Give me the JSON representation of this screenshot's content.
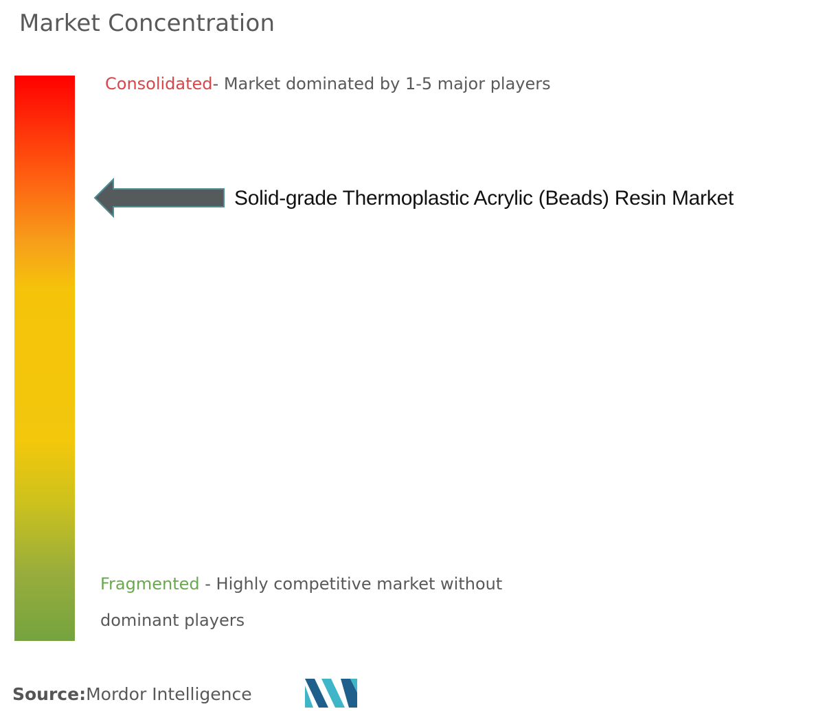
{
  "title": "Market Concentration",
  "chart_data": {
    "type": "gradient-scale",
    "title": "Market Concentration",
    "scale_top": {
      "label": "Consolidated",
      "description": "- Market dominated by 1-5 major players"
    },
    "scale_bottom": {
      "label": "Fragmented",
      "description": " - Highly competitive market without dominant players"
    },
    "marker": {
      "label": "Solid-grade Thermoplastic Acrylic (Beads) Resin Market",
      "position_fraction_from_top": 0.22
    },
    "gradient_colors": [
      "#ff0000",
      "#ff5a10",
      "#f7a11a",
      "#f5c40a",
      "#f2c70c",
      "#cfc21c",
      "#98ad3c",
      "#75a33f"
    ]
  },
  "source": {
    "label": "Source:",
    "value": "Mordor Intelligence"
  },
  "colors": {
    "consolidated": "#d9464a",
    "fragmented": "#6aa84f",
    "arrow": "#555a5c",
    "logo_dark": "#1f5f8b",
    "logo_light": "#3fb6c8"
  },
  "logo_icon": "mordor-intelligence-logo"
}
